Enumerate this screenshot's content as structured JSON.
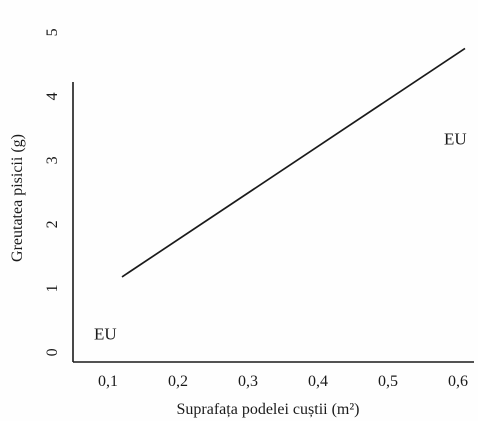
{
  "chart_data": {
    "type": "line",
    "title": "",
    "xlabel": "Suprafața podelei cuștii (m²)",
    "ylabel": "Greutatea pisicii (g)",
    "x_ticks": [
      "0,1",
      "0,2",
      "0,3",
      "0,4",
      "0,5",
      "0,6"
    ],
    "y_ticks": [
      "0",
      "1",
      "2",
      "3",
      "4",
      "5"
    ],
    "xlim": [
      0.05,
      0.62
    ],
    "ylim": [
      -0.15,
      5.35
    ],
    "grid": false,
    "series": [
      {
        "x": [
          0.12,
          0.61
        ],
        "y": [
          1.18,
          4.75
        ]
      }
    ],
    "annotations": [
      {
        "text": "EU",
        "x": 0.08,
        "y": 0.2
      },
      {
        "text": "EU",
        "x": 0.58,
        "y": 3.25
      }
    ]
  }
}
